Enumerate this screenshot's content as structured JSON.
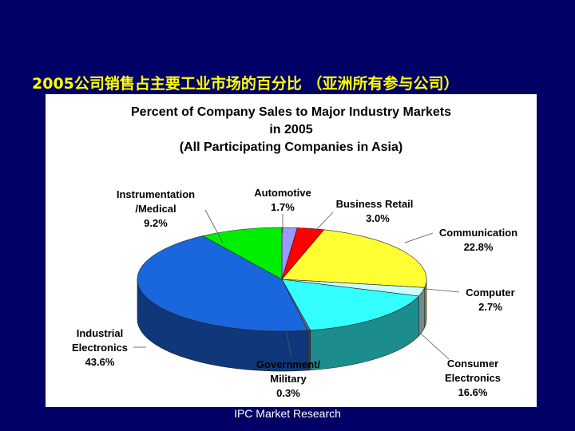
{
  "slide_title": "2005公司销售占主要工业市场的百分比 （亚洲所有参与公司）",
  "source": "IPC Market Research",
  "chart_data": {
    "type": "pie",
    "title_lines": [
      "Percent of Company Sales to Major Industry Markets",
      "in 2005",
      "(All Participating Companies in Asia)"
    ],
    "slices": [
      {
        "name": "Automotive",
        "value": 1.7,
        "label": "1.7%",
        "color": "#9999ff"
      },
      {
        "name": "Business Retail",
        "value": 3.0,
        "label": "3.0%",
        "color": "#ff0000"
      },
      {
        "name": "Communication",
        "value": 22.8,
        "label": "22.8%",
        "color": "#ffff33"
      },
      {
        "name": "Computer",
        "value": 2.7,
        "label": "2.7%",
        "color": "#ccffff"
      },
      {
        "name": "Consumer Electronics",
        "value": 16.6,
        "label": "16.6%",
        "color": "#33ffff"
      },
      {
        "name": "Government/ Military",
        "value": 0.3,
        "label": "0.3%",
        "color": "#666699"
      },
      {
        "name": "Industrial Electronics",
        "value": 43.6,
        "label": "43.6%",
        "color": "#1a66dd"
      },
      {
        "name": "Instrumentation /Medical",
        "value": 9.2,
        "label": "9.2%",
        "color": "#00ee00"
      }
    ]
  }
}
